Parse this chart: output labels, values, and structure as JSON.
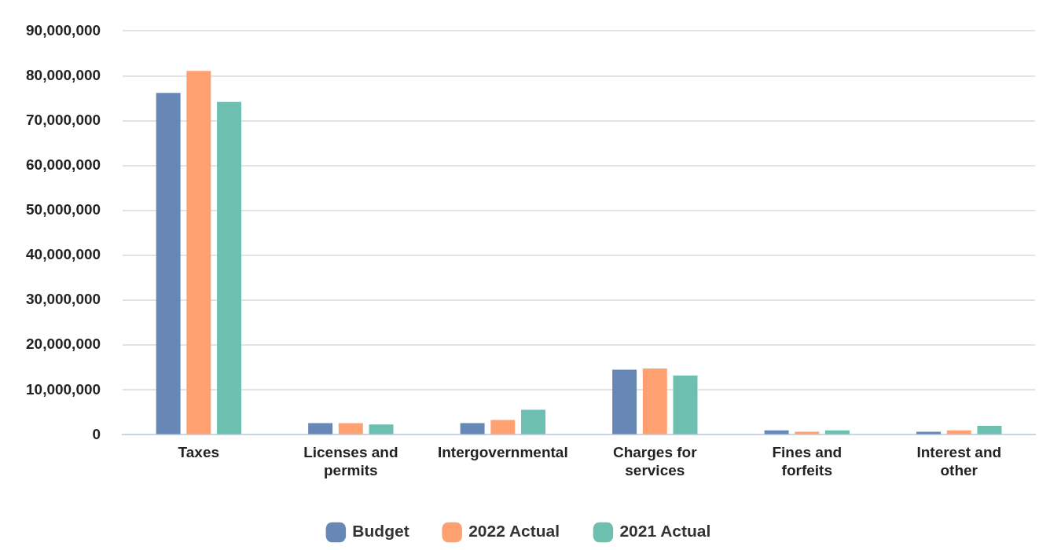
{
  "chart_data": {
    "type": "bar",
    "categories": [
      "Taxes",
      "Licenses and permits",
      "Intergovernmental",
      "Charges for services",
      "Fines and forfeits",
      "Interest and other"
    ],
    "series": [
      {
        "name": "Budget",
        "color": "#6787b7",
        "values": [
          76200000,
          2600000,
          2600000,
          14500000,
          1000000,
          700000
        ]
      },
      {
        "name": "2022 Actual",
        "color": "#ffa070",
        "values": [
          81100000,
          2600000,
          3300000,
          14800000,
          700000,
          1000000
        ]
      },
      {
        "name": "2021 Actual",
        "color": "#6dbfaf",
        "values": [
          74200000,
          2300000,
          5600000,
          13200000,
          1000000,
          2000000
        ]
      }
    ],
    "ylim": [
      0,
      90000000
    ],
    "yticks": [
      0,
      {
        "value": 10000000,
        "label": "10,000,000"
      },
      {
        "value": 20000000,
        "label": "20,000,000"
      },
      {
        "value": 30000000,
        "label": "30,000,000"
      },
      {
        "value": 40000000,
        "label": "40,000,000"
      },
      {
        "value": 50000000,
        "label": "50,000,000"
      },
      {
        "value": 60000000,
        "label": "60,000,000"
      },
      {
        "value": 70000000,
        "label": "70,000,000"
      },
      {
        "value": 80000000,
        "label": "80,000,000"
      },
      {
        "value": 90000000,
        "label": "90,000,000"
      }
    ],
    "grid": "y",
    "legend": "bottom"
  }
}
